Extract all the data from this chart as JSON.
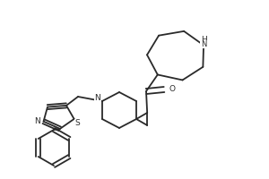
{
  "bg_color": "#ffffff",
  "line_color": "#2a2a2a",
  "line_width": 1.3,
  "font_size": 6.5,
  "fig_w": 3.0,
  "fig_h": 2.0,
  "dpi": 100,
  "xlim": [
    0,
    300
  ],
  "ylim": [
    0,
    200
  ]
}
